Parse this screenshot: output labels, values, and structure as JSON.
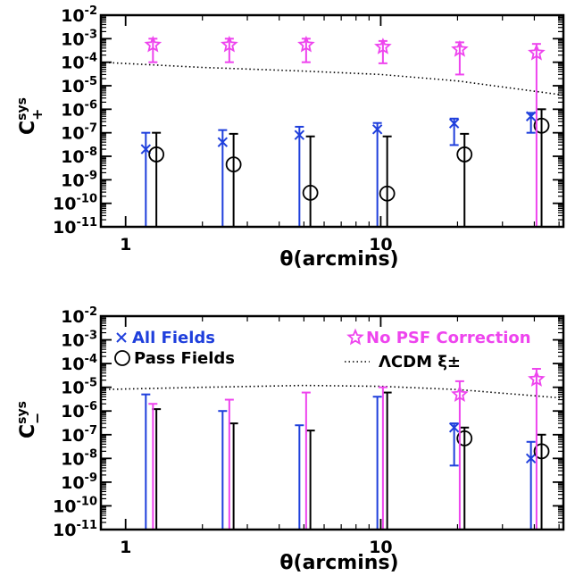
{
  "colors": {
    "all": "#1f3fdc",
    "pass": "#000000",
    "nopsf": "#ee44ee",
    "lcdm": "#000000"
  },
  "chart_data": [
    {
      "type": "scatter",
      "panel": "top",
      "xscale": "log",
      "yscale": "log",
      "xlim": [
        0.8,
        52
      ],
      "ylim": [
        1e-11,
        0.01
      ],
      "xlabel": "θ(arcmins)",
      "ylabel": {
        "main": "C",
        "sup": "sys",
        "sub": "+"
      },
      "x_tick_labels": [
        "1",
        "10"
      ],
      "y_tick_labels": [
        {
          "v": 0.01,
          "m": "-2"
        },
        {
          "v": 0.001,
          "m": "-3"
        },
        {
          "v": 0.0001,
          "m": "-4"
        },
        {
          "v": 1e-05,
          "m": "-5"
        },
        {
          "v": 1e-06,
          "m": "-6"
        },
        {
          "v": 1e-07,
          "m": "-7"
        },
        {
          "v": 1e-08,
          "m": "-8"
        },
        {
          "v": 1e-09,
          "m": "-9"
        },
        {
          "v": 1e-10,
          "m": "-10"
        },
        {
          "v": 1e-11,
          "m": "-11"
        }
      ],
      "series": [
        {
          "key": "all",
          "marker": "x",
          "points": [
            {
              "x": 1.2,
              "y": 2e-08,
              "lo": 1e-11,
              "hi": 1e-07
            },
            {
              "x": 2.4,
              "y": 4e-08,
              "lo": 1e-11,
              "hi": 1.3e-07
            },
            {
              "x": 4.8,
              "y": 8e-08,
              "lo": 1e-11,
              "hi": 1.8e-07
            },
            {
              "x": 9.7,
              "y": 1.4e-07,
              "lo": 1e-11,
              "hi": 2.6e-07
            },
            {
              "x": 19.4,
              "y": 2.5e-07,
              "lo": 3e-08,
              "hi": 4e-07
            },
            {
              "x": 38.8,
              "y": 5e-07,
              "lo": 1e-07,
              "hi": 7e-07
            }
          ]
        },
        {
          "key": "pass",
          "marker": "circle",
          "points": [
            {
              "x": 1.32,
              "y": 1.2e-08,
              "lo": 1e-11,
              "hi": 1e-07
            },
            {
              "x": 2.65,
              "y": 4.5e-09,
              "lo": 1e-11,
              "hi": 9e-08
            },
            {
              "x": 5.3,
              "y": 2.8e-10,
              "lo": 1e-11,
              "hi": 7e-08
            },
            {
              "x": 10.6,
              "y": 2.6e-10,
              "lo": 1e-11,
              "hi": 7e-08
            },
            {
              "x": 21.3,
              "y": 1.2e-08,
              "lo": 1e-11,
              "hi": 9e-08
            },
            {
              "x": 42.7,
              "y": 2e-07,
              "lo": 1e-11,
              "hi": 1e-06
            }
          ]
        },
        {
          "key": "nopsf",
          "marker": "star",
          "points": [
            {
              "x": 1.28,
              "y": 0.00055,
              "lo": 0.0001,
              "hi": 0.001
            },
            {
              "x": 2.55,
              "y": 0.00055,
              "lo": 0.0001,
              "hi": 0.001
            },
            {
              "x": 5.1,
              "y": 0.00055,
              "lo": 0.0001,
              "hi": 0.001
            },
            {
              "x": 10.2,
              "y": 0.00045,
              "lo": 9e-05,
              "hi": 0.0008
            },
            {
              "x": 20.4,
              "y": 0.00035,
              "lo": 3e-05,
              "hi": 0.0007
            },
            {
              "x": 40.8,
              "y": 0.00025,
              "lo": 1e-11,
              "hi": 0.0006
            }
          ]
        }
      ],
      "theory_line": {
        "key": "lcdm",
        "x": [
          0.8,
          2,
          5,
          10,
          20,
          52
        ],
        "y": [
          0.0001,
          6e-05,
          4.2e-05,
          3e-05,
          1.6e-05,
          4e-06
        ]
      }
    },
    {
      "type": "scatter",
      "panel": "bottom",
      "xscale": "log",
      "yscale": "log",
      "xlim": [
        0.8,
        52
      ],
      "ylim": [
        1e-11,
        0.01
      ],
      "xlabel": "θ(arcmins)",
      "ylabel": {
        "main": "C",
        "sup": "sys",
        "sub": "−"
      },
      "x_tick_labels": [
        "1",
        "10"
      ],
      "y_tick_labels": [
        {
          "v": 0.01,
          "m": "-2"
        },
        {
          "v": 0.001,
          "m": "-3"
        },
        {
          "v": 0.0001,
          "m": "-4"
        },
        {
          "v": 1e-05,
          "m": "-5"
        },
        {
          "v": 1e-06,
          "m": "-6"
        },
        {
          "v": 1e-07,
          "m": "-7"
        },
        {
          "v": 1e-08,
          "m": "-8"
        },
        {
          "v": 1e-09,
          "m": "-9"
        },
        {
          "v": 1e-10,
          "m": "-10"
        },
        {
          "v": 1e-11,
          "m": "-11"
        }
      ],
      "legend": {
        "all": "All Fields",
        "pass": "Pass Fields",
        "nopsf": "No PSF Correction",
        "lcdm": "ΛCDM ξ±"
      },
      "series": [
        {
          "key": "all",
          "marker": "x",
          "points": [
            {
              "x": 1.2,
              "y": null,
              "lo": 1e-11,
              "hi": 5e-06
            },
            {
              "x": 2.4,
              "y": null,
              "lo": 1e-11,
              "hi": 1e-06
            },
            {
              "x": 4.8,
              "y": null,
              "lo": 1e-11,
              "hi": 2.5e-07
            },
            {
              "x": 9.7,
              "y": null,
              "lo": 1e-11,
              "hi": 4e-06
            },
            {
              "x": 19.4,
              "y": 2e-07,
              "lo": 5e-09,
              "hi": 3e-07
            },
            {
              "x": 38.8,
              "y": 1e-08,
              "lo": 1e-11,
              "hi": 5e-08
            }
          ]
        },
        {
          "key": "pass",
          "marker": "circle",
          "points": [
            {
              "x": 1.32,
              "y": null,
              "lo": 1e-11,
              "hi": 1.2e-06
            },
            {
              "x": 2.65,
              "y": null,
              "lo": 1e-11,
              "hi": 3e-07
            },
            {
              "x": 5.3,
              "y": null,
              "lo": 1e-11,
              "hi": 1.5e-07
            },
            {
              "x": 10.6,
              "y": null,
              "lo": 1e-11,
              "hi": 6e-06
            },
            {
              "x": 21.3,
              "y": 7e-08,
              "lo": 1e-11,
              "hi": 2e-07
            },
            {
              "x": 42.7,
              "y": 2e-08,
              "lo": 1e-11,
              "hi": 1e-07
            }
          ]
        },
        {
          "key": "nopsf",
          "marker": "star",
          "points": [
            {
              "x": 1.28,
              "y": null,
              "lo": 1e-11,
              "hi": 2e-06
            },
            {
              "x": 2.55,
              "y": null,
              "lo": 1e-11,
              "hi": 3e-06
            },
            {
              "x": 5.1,
              "y": null,
              "lo": 1e-11,
              "hi": 6e-06
            },
            {
              "x": 10.2,
              "y": null,
              "lo": 1e-11,
              "hi": 1e-05
            },
            {
              "x": 20.4,
              "y": 5e-06,
              "lo": 1e-11,
              "hi": 1.8e-05
            },
            {
              "x": 40.8,
              "y": 2.2e-05,
              "lo": 1e-11,
              "hi": 6e-05
            }
          ]
        }
      ],
      "theory_line": {
        "key": "lcdm",
        "x": [
          0.8,
          2,
          5,
          10,
          20,
          52
        ],
        "y": [
          8e-06,
          1e-05,
          1.2e-05,
          1.1e-05,
          8e-06,
          3.5e-06
        ]
      }
    }
  ]
}
